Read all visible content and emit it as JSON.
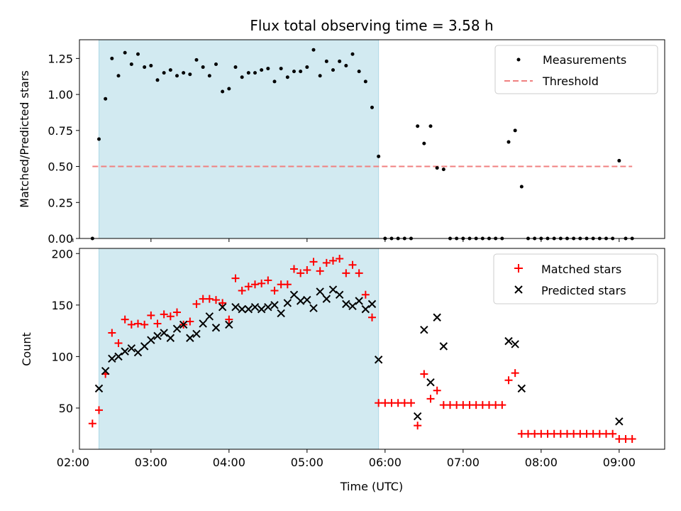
{
  "chart_data": {
    "type": "scatter",
    "title": "Flux total observing time = 3.58 h",
    "xlabel": "Time (UTC)",
    "xlim": [
      "02:05",
      "09:35"
    ],
    "x_ticks": [
      "02:00",
      "03:00",
      "04:00",
      "05:00",
      "06:00",
      "07:00",
      "08:00",
      "09:00"
    ],
    "shaded_interval": [
      "02:20",
      "05:55"
    ],
    "shade_color": "#add8e6",
    "panels": [
      {
        "ylabel": "Matched/Predicted stars",
        "ylim": [
          0,
          1.38
        ],
        "y_ticks": [
          "0.00",
          "0.25",
          "0.50",
          "0.75",
          "1.00",
          "1.25"
        ],
        "legend_position": "top-right",
        "threshold": {
          "name": "Threshold",
          "value": 0.5,
          "x_range": [
            "02:15",
            "09:10"
          ],
          "color": "#f08080"
        },
        "series": [
          {
            "name": "Measurements",
            "marker": "dot",
            "color": "#000000",
            "points": [
              [
                "02:15",
                0.0
              ],
              [
                "02:20",
                0.69
              ],
              [
                "02:25",
                0.97
              ],
              [
                "02:30",
                1.25
              ],
              [
                "02:35",
                1.13
              ],
              [
                "02:40",
                1.29
              ],
              [
                "02:45",
                1.21
              ],
              [
                "02:50",
                1.28
              ],
              [
                "02:55",
                1.19
              ],
              [
                "03:00",
                1.2
              ],
              [
                "03:05",
                1.1
              ],
              [
                "03:10",
                1.15
              ],
              [
                "03:15",
                1.17
              ],
              [
                "03:20",
                1.13
              ],
              [
                "03:25",
                1.15
              ],
              [
                "03:30",
                1.14
              ],
              [
                "03:35",
                1.24
              ],
              [
                "03:40",
                1.19
              ],
              [
                "03:45",
                1.13
              ],
              [
                "03:50",
                1.21
              ],
              [
                "03:55",
                1.02
              ],
              [
                "04:00",
                1.04
              ],
              [
                "04:05",
                1.19
              ],
              [
                "04:10",
                1.12
              ],
              [
                "04:15",
                1.15
              ],
              [
                "04:20",
                1.15
              ],
              [
                "04:25",
                1.17
              ],
              [
                "04:30",
                1.18
              ],
              [
                "04:35",
                1.09
              ],
              [
                "04:40",
                1.18
              ],
              [
                "04:45",
                1.12
              ],
              [
                "04:50",
                1.16
              ],
              [
                "04:55",
                1.16
              ],
              [
                "05:00",
                1.19
              ],
              [
                "05:05",
                1.31
              ],
              [
                "05:10",
                1.13
              ],
              [
                "05:15",
                1.23
              ],
              [
                "05:20",
                1.17
              ],
              [
                "05:25",
                1.23
              ],
              [
                "05:30",
                1.2
              ],
              [
                "05:35",
                1.28
              ],
              [
                "05:40",
                1.16
              ],
              [
                "05:45",
                1.09
              ],
              [
                "05:50",
                0.91
              ],
              [
                "05:55",
                0.57
              ],
              [
                "06:00",
                0.0
              ],
              [
                "06:05",
                0.0
              ],
              [
                "06:10",
                0.0
              ],
              [
                "06:15",
                0.0
              ],
              [
                "06:20",
                0.0
              ],
              [
                "06:25",
                0.78
              ],
              [
                "06:30",
                0.66
              ],
              [
                "06:35",
                0.78
              ],
              [
                "06:40",
                0.49
              ],
              [
                "06:45",
                0.48
              ],
              [
                "06:50",
                0.0
              ],
              [
                "06:55",
                0.0
              ],
              [
                "07:00",
                0.0
              ],
              [
                "07:05",
                0.0
              ],
              [
                "07:10",
                0.0
              ],
              [
                "07:15",
                0.0
              ],
              [
                "07:20",
                0.0
              ],
              [
                "07:25",
                0.0
              ],
              [
                "07:30",
                0.0
              ],
              [
                "07:35",
                0.67
              ],
              [
                "07:40",
                0.75
              ],
              [
                "07:45",
                0.36
              ],
              [
                "07:50",
                0.0
              ],
              [
                "07:55",
                0.0
              ],
              [
                "08:00",
                0.0
              ],
              [
                "08:05",
                0.0
              ],
              [
                "08:10",
                0.0
              ],
              [
                "08:15",
                0.0
              ],
              [
                "08:20",
                0.0
              ],
              [
                "08:25",
                0.0
              ],
              [
                "08:30",
                0.0
              ],
              [
                "08:35",
                0.0
              ],
              [
                "08:40",
                0.0
              ],
              [
                "08:45",
                0.0
              ],
              [
                "08:50",
                0.0
              ],
              [
                "08:55",
                0.0
              ],
              [
                "09:00",
                0.54
              ],
              [
                "09:05",
                0.0
              ],
              [
                "09:10",
                0.0
              ]
            ]
          }
        ]
      },
      {
        "ylabel": "Count",
        "ylim": [
          10,
          205
        ],
        "y_ticks": [
          "50",
          "100",
          "150",
          "200"
        ],
        "legend_position": "top-right",
        "series": [
          {
            "name": "Matched stars",
            "marker": "plus",
            "color": "#ff0000",
            "points": [
              [
                "02:15",
                35
              ],
              [
                "02:20",
                48
              ],
              [
                "02:25",
                83
              ],
              [
                "02:30",
                123
              ],
              [
                "02:35",
                113
              ],
              [
                "02:40",
                136
              ],
              [
                "02:45",
                131
              ],
              [
                "02:50",
                132
              ],
              [
                "02:55",
                131
              ],
              [
                "03:00",
                140
              ],
              [
                "03:05",
                132
              ],
              [
                "03:10",
                141
              ],
              [
                "03:15",
                139
              ],
              [
                "03:20",
                143
              ],
              [
                "03:25",
                131
              ],
              [
                "03:30",
                134
              ],
              [
                "03:35",
                151
              ],
              [
                "03:40",
                156
              ],
              [
                "03:45",
                156
              ],
              [
                "03:50",
                155
              ],
              [
                "03:55",
                152
              ],
              [
                "04:00",
                136
              ],
              [
                "04:05",
                176
              ],
              [
                "04:10",
                164
              ],
              [
                "04:15",
                168
              ],
              [
                "04:20",
                170
              ],
              [
                "04:25",
                171
              ],
              [
                "04:30",
                174
              ],
              [
                "04:35",
                164
              ],
              [
                "04:40",
                170
              ],
              [
                "04:45",
                170
              ],
              [
                "04:50",
                185
              ],
              [
                "04:55",
                181
              ],
              [
                "05:00",
                184
              ],
              [
                "05:05",
                192
              ],
              [
                "05:10",
                183
              ],
              [
                "05:15",
                191
              ],
              [
                "05:20",
                193
              ],
              [
                "05:25",
                195
              ],
              [
                "05:30",
                181
              ],
              [
                "05:35",
                189
              ],
              [
                "05:40",
                181
              ],
              [
                "05:45",
                160
              ],
              [
                "05:50",
                138
              ],
              [
                "05:55",
                55
              ],
              [
                "06:00",
                55
              ],
              [
                "06:05",
                55
              ],
              [
                "06:10",
                55
              ],
              [
                "06:15",
                55
              ],
              [
                "06:20",
                55
              ],
              [
                "06:25",
                33
              ],
              [
                "06:30",
                83
              ],
              [
                "06:35",
                59
              ],
              [
                "06:40",
                67
              ],
              [
                "06:45",
                53
              ],
              [
                "06:50",
                53
              ],
              [
                "06:55",
                53
              ],
              [
                "07:00",
                53
              ],
              [
                "07:05",
                53
              ],
              [
                "07:10",
                53
              ],
              [
                "07:15",
                53
              ],
              [
                "07:20",
                53
              ],
              [
                "07:25",
                53
              ],
              [
                "07:30",
                53
              ],
              [
                "07:35",
                77
              ],
              [
                "07:40",
                84
              ],
              [
                "07:45",
                25
              ],
              [
                "07:50",
                25
              ],
              [
                "07:55",
                25
              ],
              [
                "08:00",
                25
              ],
              [
                "08:05",
                25
              ],
              [
                "08:10",
                25
              ],
              [
                "08:15",
                25
              ],
              [
                "08:20",
                25
              ],
              [
                "08:25",
                25
              ],
              [
                "08:30",
                25
              ],
              [
                "08:35",
                25
              ],
              [
                "08:40",
                25
              ],
              [
                "08:45",
                25
              ],
              [
                "08:50",
                25
              ],
              [
                "08:55",
                25
              ],
              [
                "09:00",
                20
              ],
              [
                "09:05",
                20
              ],
              [
                "09:10",
                20
              ]
            ]
          },
          {
            "name": "Predicted stars",
            "marker": "cross",
            "color": "#000000",
            "points": [
              [
                "02:20",
                69
              ],
              [
                "02:25",
                86
              ],
              [
                "02:30",
                98
              ],
              [
                "02:35",
                100
              ],
              [
                "02:40",
                105
              ],
              [
                "02:45",
                108
              ],
              [
                "02:50",
                104
              ],
              [
                "02:55",
                110
              ],
              [
                "03:00",
                116
              ],
              [
                "03:05",
                120
              ],
              [
                "03:10",
                123
              ],
              [
                "03:15",
                118
              ],
              [
                "03:20",
                127
              ],
              [
                "03:25",
                131
              ],
              [
                "03:30",
                118
              ],
              [
                "03:35",
                122
              ],
              [
                "03:40",
                132
              ],
              [
                "03:45",
                139
              ],
              [
                "03:50",
                128
              ],
              [
                "03:55",
                148
              ],
              [
                "04:00",
                131
              ],
              [
                "04:05",
                148
              ],
              [
                "04:10",
                146
              ],
              [
                "04:15",
                146
              ],
              [
                "04:20",
                148
              ],
              [
                "04:25",
                146
              ],
              [
                "04:30",
                148
              ],
              [
                "04:35",
                150
              ],
              [
                "04:40",
                142
              ],
              [
                "04:45",
                152
              ],
              [
                "04:50",
                160
              ],
              [
                "04:55",
                154
              ],
              [
                "05:00",
                155
              ],
              [
                "05:05",
                147
              ],
              [
                "05:10",
                163
              ],
              [
                "05:15",
                156
              ],
              [
                "05:20",
                165
              ],
              [
                "05:25",
                160
              ],
              [
                "05:30",
                151
              ],
              [
                "05:35",
                149
              ],
              [
                "05:40",
                154
              ],
              [
                "05:45",
                146
              ],
              [
                "05:50",
                151
              ],
              [
                "05:55",
                97
              ],
              [
                "06:25",
                42
              ],
              [
                "06:30",
                126
              ],
              [
                "06:35",
                75
              ],
              [
                "06:40",
                138
              ],
              [
                "06:45",
                110
              ],
              [
                "07:35",
                115
              ],
              [
                "07:40",
                112
              ],
              [
                "07:45",
                69
              ],
              [
                "09:00",
                37
              ]
            ]
          }
        ]
      }
    ]
  }
}
